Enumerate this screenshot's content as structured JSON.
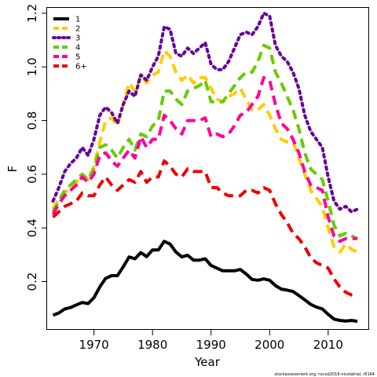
{
  "chart_data": {
    "type": "line",
    "xlabel": "Year",
    "ylabel": "F",
    "xlim": [
      1962,
      2017
    ],
    "ylim": [
      0.02,
      1.22
    ],
    "x_ticks": [
      1970,
      1980,
      1990,
      2000,
      2010
    ],
    "y_ticks": [
      0.2,
      0.4,
      0.6,
      0.8,
      1.0,
      1.2
    ],
    "x_tick_labels": [
      "1970",
      "1980",
      "1990",
      "2000",
      "2010"
    ],
    "y_tick_labels": [
      "0.2",
      "0.4",
      "0.6",
      "0.8",
      "1.0",
      "1.2"
    ],
    "grid": false,
    "legend_position": "top-left",
    "source_note": "stockassessment.org, nscod2016-nicolatrial, r6164",
    "x": [
      1963,
      1964,
      1965,
      1966,
      1967,
      1968,
      1969,
      1970,
      1971,
      1972,
      1973,
      1974,
      1975,
      1976,
      1977,
      1978,
      1979,
      1980,
      1981,
      1982,
      1983,
      1984,
      1985,
      1986,
      1987,
      1988,
      1989,
      1990,
      1991,
      1992,
      1993,
      1994,
      1995,
      1996,
      1997,
      1998,
      1999,
      2000,
      2001,
      2002,
      2003,
      2004,
      2005,
      2006,
      2007,
      2008,
      2009,
      2010,
      2011,
      2012,
      2013,
      2014,
      2015
    ],
    "series": [
      {
        "name": "1",
        "color": "#000000",
        "dash": "solid",
        "values": [
          0.075,
          0.083,
          0.098,
          0.103,
          0.113,
          0.122,
          0.118,
          0.14,
          0.18,
          0.212,
          0.222,
          0.222,
          0.255,
          0.292,
          0.285,
          0.308,
          0.293,
          0.318,
          0.318,
          0.35,
          0.34,
          0.31,
          0.292,
          0.298,
          0.28,
          0.28,
          0.285,
          0.26,
          0.25,
          0.24,
          0.24,
          0.24,
          0.245,
          0.228,
          0.208,
          0.205,
          0.21,
          0.205,
          0.185,
          0.172,
          0.168,
          0.163,
          0.148,
          0.132,
          0.115,
          0.105,
          0.098,
          0.078,
          0.06,
          0.055,
          0.053,
          0.055,
          0.052
        ]
      },
      {
        "name": "2",
        "color": "#ffcc00",
        "dash": "long",
        "values": [
          0.47,
          0.51,
          0.53,
          0.55,
          0.57,
          0.6,
          0.58,
          0.63,
          0.72,
          0.8,
          0.81,
          0.78,
          0.86,
          0.94,
          0.91,
          0.97,
          0.94,
          0.97,
          0.98,
          1.06,
          1.04,
          0.98,
          0.95,
          0.97,
          0.94,
          0.96,
          0.96,
          0.92,
          0.88,
          0.87,
          0.89,
          0.9,
          0.92,
          0.88,
          0.84,
          0.84,
          0.86,
          0.82,
          0.77,
          0.73,
          0.72,
          0.72,
          0.66,
          0.6,
          0.54,
          0.51,
          0.48,
          0.4,
          0.33,
          0.31,
          0.34,
          0.32,
          0.31
        ]
      },
      {
        "name": "3",
        "color": "#660099",
        "dash": "dotted",
        "values": [
          0.5,
          0.55,
          0.61,
          0.64,
          0.66,
          0.7,
          0.67,
          0.73,
          0.82,
          0.85,
          0.83,
          0.79,
          0.86,
          0.91,
          0.89,
          0.97,
          0.95,
          1.0,
          1.04,
          1.15,
          1.14,
          1.05,
          1.04,
          1.07,
          1.05,
          1.07,
          1.09,
          1.01,
          0.99,
          0.99,
          1.02,
          1.07,
          1.12,
          1.13,
          1.12,
          1.15,
          1.2,
          1.19,
          1.08,
          1.04,
          1.02,
          0.98,
          0.92,
          0.82,
          0.76,
          0.73,
          0.7,
          0.59,
          0.5,
          0.47,
          0.48,
          0.46,
          0.47
        ]
      },
      {
        "name": "4",
        "color": "#66cc00",
        "dash": "long",
        "values": [
          0.46,
          0.5,
          0.54,
          0.56,
          0.58,
          0.6,
          0.58,
          0.62,
          0.7,
          0.71,
          0.69,
          0.66,
          0.7,
          0.73,
          0.69,
          0.75,
          0.74,
          0.78,
          0.8,
          0.91,
          0.91,
          0.88,
          0.86,
          0.91,
          0.92,
          0.93,
          0.95,
          0.87,
          0.87,
          0.87,
          0.9,
          0.93,
          0.96,
          0.98,
          0.98,
          1.02,
          1.08,
          1.07,
          0.98,
          0.94,
          0.89,
          0.84,
          0.77,
          0.68,
          0.62,
          0.6,
          0.58,
          0.5,
          0.41,
          0.37,
          0.38,
          0.37,
          0.36
        ]
      },
      {
        "name": "5",
        "color": "#ff0099",
        "dash": "long",
        "values": [
          0.45,
          0.49,
          0.52,
          0.54,
          0.56,
          0.59,
          0.57,
          0.6,
          0.67,
          0.68,
          0.65,
          0.63,
          0.66,
          0.69,
          0.66,
          0.74,
          0.7,
          0.73,
          0.73,
          0.82,
          0.8,
          0.77,
          0.75,
          0.8,
          0.8,
          0.8,
          0.81,
          0.74,
          0.75,
          0.74,
          0.75,
          0.78,
          0.82,
          0.83,
          0.86,
          0.89,
          0.96,
          0.95,
          0.86,
          0.79,
          0.77,
          0.73,
          0.68,
          0.61,
          0.56,
          0.55,
          0.54,
          0.44,
          0.37,
          0.35,
          0.36,
          0.36,
          0.36
        ]
      },
      {
        "name": "6+",
        "color": "#ee0000",
        "dash": "long",
        "values": [
          0.44,
          0.46,
          0.48,
          0.49,
          0.5,
          0.53,
          0.52,
          0.52,
          0.56,
          0.59,
          0.56,
          0.54,
          0.56,
          0.58,
          0.57,
          0.61,
          0.57,
          0.59,
          0.59,
          0.65,
          0.63,
          0.6,
          0.59,
          0.62,
          0.61,
          0.61,
          0.61,
          0.55,
          0.55,
          0.53,
          0.52,
          0.52,
          0.52,
          0.54,
          0.54,
          0.53,
          0.55,
          0.54,
          0.49,
          0.45,
          0.42,
          0.38,
          0.36,
          0.33,
          0.29,
          0.27,
          0.26,
          0.25,
          0.21,
          0.18,
          0.16,
          0.15,
          0.145
        ]
      }
    ]
  }
}
